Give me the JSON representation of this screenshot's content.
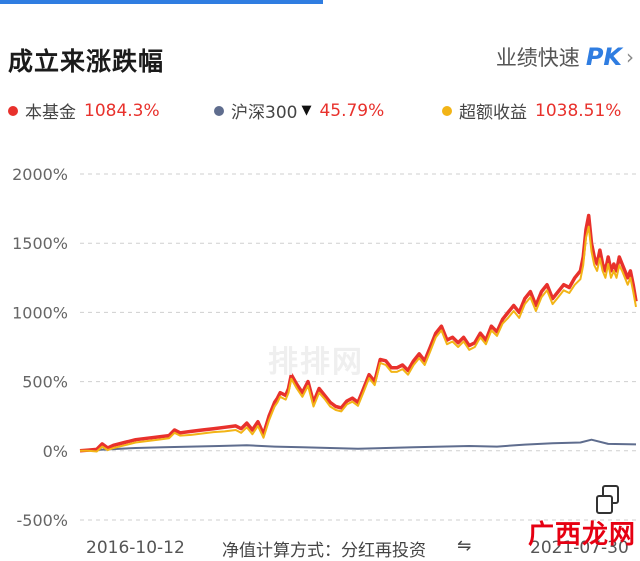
{
  "header": {
    "title": "成立来涨跌幅",
    "pk_label": "业绩快速",
    "pk_badge": "PK",
    "pk_chevron": "›"
  },
  "legend": [
    {
      "label": "本基金",
      "value": "1084.3%",
      "color": "#e8312c",
      "value_color": "#e8312c"
    },
    {
      "label": "沪深300",
      "value": "45.79%",
      "color": "#5f6d8e",
      "value_color": "#e8312c",
      "arrow": "▼"
    },
    {
      "label": "超额收益",
      "value": "1038.51%",
      "color": "#f2b416",
      "value_color": "#e8312c"
    }
  ],
  "watermark": "排排网",
  "footer": {
    "start_date": "2016-10-12",
    "end_date": "2021-07-30",
    "method_label": "净值计算方式：分红再投资",
    "swap_icon": "⇋"
  },
  "logo": {
    "text": "广西龙网"
  },
  "chart_data": {
    "type": "line",
    "y_ticks": [
      "2000%",
      "1500%",
      "1000%",
      "500%",
      "0%",
      "-500%"
    ],
    "ylim": [
      -500,
      2000
    ],
    "x_labels": [
      "2016-10-12",
      "2021-07-30"
    ],
    "series": [
      {
        "name": "本基金",
        "color": "#e8312c",
        "x": [
          0,
          0.015,
          0.03,
          0.04,
          0.05,
          0.06,
          0.08,
          0.1,
          0.12,
          0.14,
          0.16,
          0.17,
          0.18,
          0.2,
          0.22,
          0.24,
          0.26,
          0.28,
          0.29,
          0.3,
          0.31,
          0.32,
          0.33,
          0.34,
          0.345,
          0.35,
          0.355,
          0.36,
          0.37,
          0.375,
          0.38,
          0.39,
          0.4,
          0.41,
          0.42,
          0.43,
          0.44,
          0.45,
          0.46,
          0.47,
          0.48,
          0.49,
          0.5,
          0.51,
          0.52,
          0.53,
          0.54,
          0.55,
          0.56,
          0.57,
          0.58,
          0.59,
          0.6,
          0.61,
          0.62,
          0.63,
          0.64,
          0.65,
          0.66,
          0.67,
          0.68,
          0.69,
          0.7,
          0.71,
          0.72,
          0.73,
          0.74,
          0.75,
          0.76,
          0.77,
          0.78,
          0.79,
          0.8,
          0.81,
          0.82,
          0.83,
          0.84,
          0.85,
          0.86,
          0.87,
          0.88,
          0.89,
          0.9,
          0.905,
          0.91,
          0.915,
          0.92,
          0.925,
          0.93,
          0.935,
          0.94,
          0.945,
          0.95,
          0.955,
          0.96,
          0.965,
          0.97,
          0.975,
          0.98,
          0.985,
          0.99,
          0.995,
          1.0
        ],
        "values": [
          0,
          5,
          10,
          50,
          20,
          40,
          60,
          80,
          90,
          100,
          110,
          150,
          130,
          140,
          150,
          160,
          170,
          180,
          160,
          200,
          150,
          210,
          120,
          250,
          300,
          350,
          380,
          420,
          400,
          450,
          550,
          480,
          420,
          500,
          350,
          450,
          400,
          350,
          320,
          310,
          360,
          380,
          350,
          450,
          550,
          500,
          660,
          650,
          600,
          600,
          620,
          580,
          650,
          700,
          650,
          750,
          850,
          900,
          800,
          820,
          780,
          820,
          760,
          780,
          850,
          800,
          900,
          860,
          950,
          1000,
          1050,
          1000,
          1100,
          1150,
          1050,
          1150,
          1200,
          1100,
          1150,
          1200,
          1180,
          1250,
          1300,
          1400,
          1600,
          1700,
          1500,
          1400,
          1350,
          1450,
          1350,
          1300,
          1400,
          1300,
          1350,
          1300,
          1400,
          1350,
          1300,
          1250,
          1300,
          1200,
          1080
        ]
      },
      {
        "name": "沪深300",
        "color": "#5f6d8e",
        "x": [
          0,
          0.05,
          0.1,
          0.15,
          0.2,
          0.25,
          0.3,
          0.35,
          0.4,
          0.45,
          0.5,
          0.55,
          0.6,
          0.65,
          0.7,
          0.75,
          0.8,
          0.85,
          0.9,
          0.92,
          0.95,
          1.0
        ],
        "values": [
          0,
          10,
          20,
          25,
          30,
          35,
          40,
          30,
          25,
          20,
          15,
          20,
          25,
          30,
          35,
          30,
          45,
          55,
          60,
          80,
          50,
          46
        ]
      },
      {
        "name": "超额收益",
        "color": "#f2b416",
        "x": [
          0,
          0.015,
          0.03,
          0.04,
          0.05,
          0.06,
          0.08,
          0.1,
          0.12,
          0.14,
          0.16,
          0.17,
          0.18,
          0.2,
          0.22,
          0.24,
          0.26,
          0.28,
          0.29,
          0.3,
          0.31,
          0.32,
          0.33,
          0.34,
          0.345,
          0.35,
          0.355,
          0.36,
          0.37,
          0.375,
          0.38,
          0.39,
          0.4,
          0.41,
          0.42,
          0.43,
          0.44,
          0.45,
          0.46,
          0.47,
          0.48,
          0.49,
          0.5,
          0.51,
          0.52,
          0.53,
          0.54,
          0.55,
          0.56,
          0.57,
          0.58,
          0.59,
          0.6,
          0.61,
          0.62,
          0.63,
          0.64,
          0.65,
          0.66,
          0.67,
          0.68,
          0.69,
          0.7,
          0.71,
          0.72,
          0.73,
          0.74,
          0.75,
          0.76,
          0.77,
          0.78,
          0.79,
          0.8,
          0.81,
          0.82,
          0.83,
          0.84,
          0.85,
          0.86,
          0.87,
          0.88,
          0.89,
          0.9,
          0.905,
          0.91,
          0.915,
          0.92,
          0.925,
          0.93,
          0.935,
          0.94,
          0.945,
          0.95,
          0.955,
          0.96,
          0.965,
          0.97,
          0.975,
          0.98,
          0.985,
          0.99,
          0.995,
          1.0
        ],
        "values": [
          0,
          0,
          -5,
          30,
          5,
          20,
          40,
          60,
          70,
          80,
          90,
          130,
          110,
          115,
          125,
          135,
          140,
          150,
          130,
          170,
          120,
          180,
          95,
          220,
          270,
          320,
          350,
          390,
          370,
          420,
          520,
          450,
          390,
          470,
          320,
          420,
          375,
          320,
          295,
          285,
          335,
          355,
          325,
          425,
          525,
          475,
          635,
          620,
          570,
          570,
          590,
          550,
          620,
          670,
          620,
          720,
          820,
          870,
          770,
          790,
          750,
          790,
          730,
          750,
          820,
          770,
          870,
          830,
          920,
          960,
          1010,
          960,
          1060,
          1110,
          1010,
          1110,
          1160,
          1060,
          1110,
          1160,
          1140,
          1200,
          1240,
          1340,
          1540,
          1620,
          1440,
          1340,
          1300,
          1390,
          1300,
          1250,
          1350,
          1250,
          1300,
          1250,
          1340,
          1300,
          1250,
          1200,
          1250,
          1150,
          1040
        ]
      }
    ]
  }
}
